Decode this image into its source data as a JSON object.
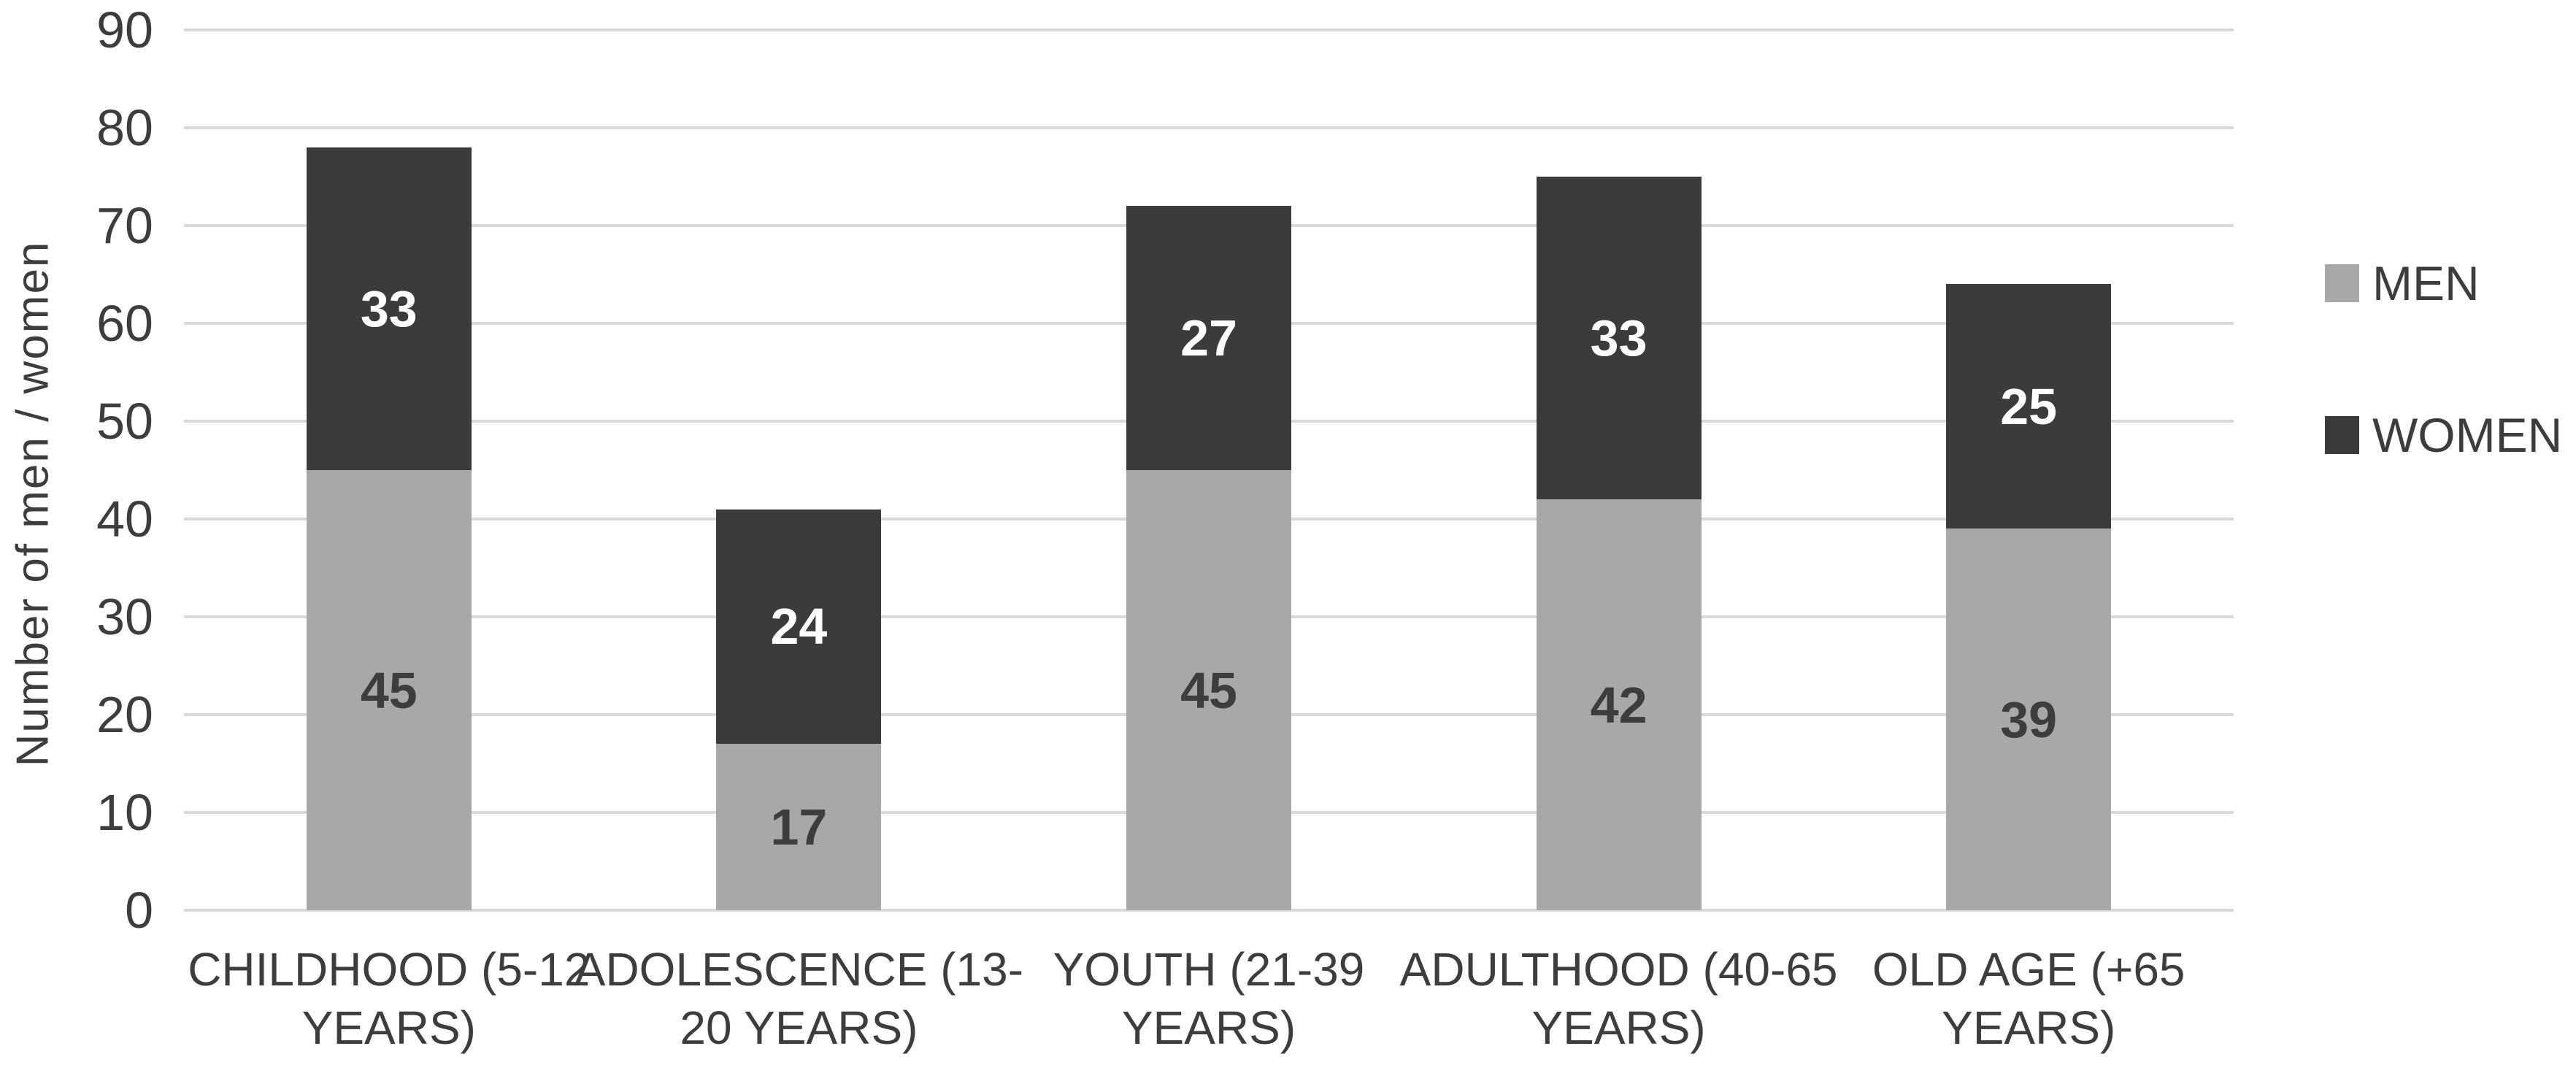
{
  "chart_data": {
    "type": "bar",
    "stacked": true,
    "categories": [
      "CHILDHOOD (5-12 YEARS)",
      "ADOLESCENCE (13-20 YEARS)",
      "YOUTH (21-39 YEARS)",
      "ADULTHOOD (40-65 YEARS)",
      "OLD AGE (+65 YEARS)"
    ],
    "category_label_lines": [
      [
        "CHILDHOOD (5-12",
        "YEARS)"
      ],
      [
        "ADOLESCENCE (13-",
        "20 YEARS)"
      ],
      [
        "YOUTH (21-39",
        "YEARS)"
      ],
      [
        "ADULTHOOD (40-65",
        "YEARS)"
      ],
      [
        "OLD AGE (+65",
        "YEARS)"
      ]
    ],
    "series": [
      {
        "name": "MEN",
        "values": [
          45,
          17,
          45,
          42,
          39
        ],
        "color": "#a8a8a8",
        "label_color": "#3d3d3d"
      },
      {
        "name": "WOMEN",
        "values": [
          33,
          24,
          27,
          33,
          25
        ],
        "color": "#3b3b3b",
        "label_color": "#ffffff"
      }
    ],
    "totals": [
      78,
      41,
      72,
      75,
      64
    ],
    "ylabel": "Number of men / women",
    "ylim": [
      0,
      90
    ],
    "ytick_step": 10,
    "yticks": [
      "0",
      "10",
      "20",
      "30",
      "40",
      "50",
      "60",
      "70",
      "80",
      "90"
    ],
    "grid": true,
    "legend_position": "right",
    "legend_entries": [
      "MEN",
      "WOMEN"
    ],
    "colors": {
      "gridline": "#d9d9d9",
      "text": "#3d3d3d",
      "background": "#ffffff"
    }
  }
}
